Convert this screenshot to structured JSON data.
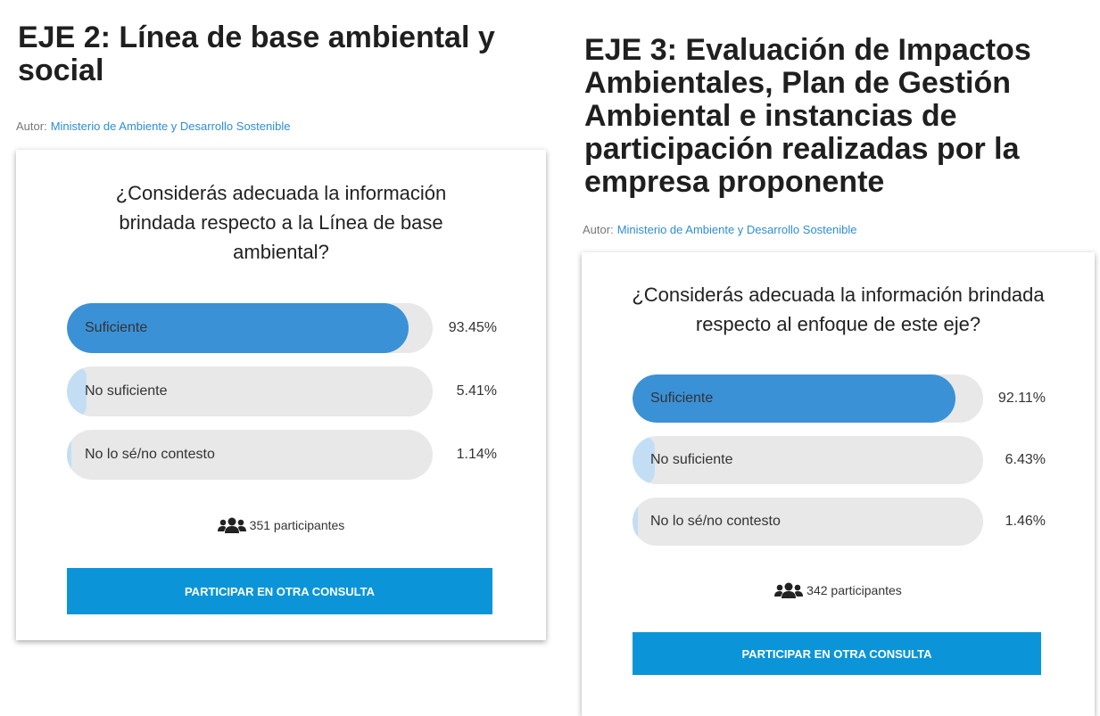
{
  "panels": [
    {
      "title": "EJE 2: Línea de base ambiental y social",
      "author_label": "Autor:",
      "author": "Ministerio de Ambiente y Desarrollo Sostenible",
      "question": "¿Considerás adecuada la información brindada respecto a la Línea de base ambiental?",
      "options": [
        {
          "label": "Suficiente",
          "value": 93.45,
          "value_label": "93.45%",
          "color": "#3b91d6"
        },
        {
          "label": "No suficiente",
          "value": 5.41,
          "value_label": "5.41%",
          "color": "#c3def4"
        },
        {
          "label": "No lo sé/no contesto",
          "value": 1.14,
          "value_label": "1.14%",
          "color": "#c3def4"
        }
      ],
      "participants": "351 participantes",
      "button": "PARTICIPAR EN OTRA CONSULTA"
    },
    {
      "title": "EJE 3: Evaluación de Impactos Ambientales, Plan de Gestión Ambiental e instancias de participación realizadas por la empresa proponente",
      "author_label": "Autor:",
      "author": "Ministerio de Ambiente y Desarrollo Sostenible",
      "question": "¿Considerás adecuada la información brindada respecto al enfoque de este eje?",
      "options": [
        {
          "label": "Suficiente",
          "value": 92.11,
          "value_label": "92.11%",
          "color": "#3b91d6"
        },
        {
          "label": "No suficiente",
          "value": 6.43,
          "value_label": "6.43%",
          "color": "#c3def4"
        },
        {
          "label": "No lo sé/no contesto",
          "value": 1.46,
          "value_label": "1.46%",
          "color": "#c3def4"
        }
      ],
      "participants": "342 participantes",
      "button": "PARTICIPAR EN OTRA CONSULTA"
    }
  ]
}
